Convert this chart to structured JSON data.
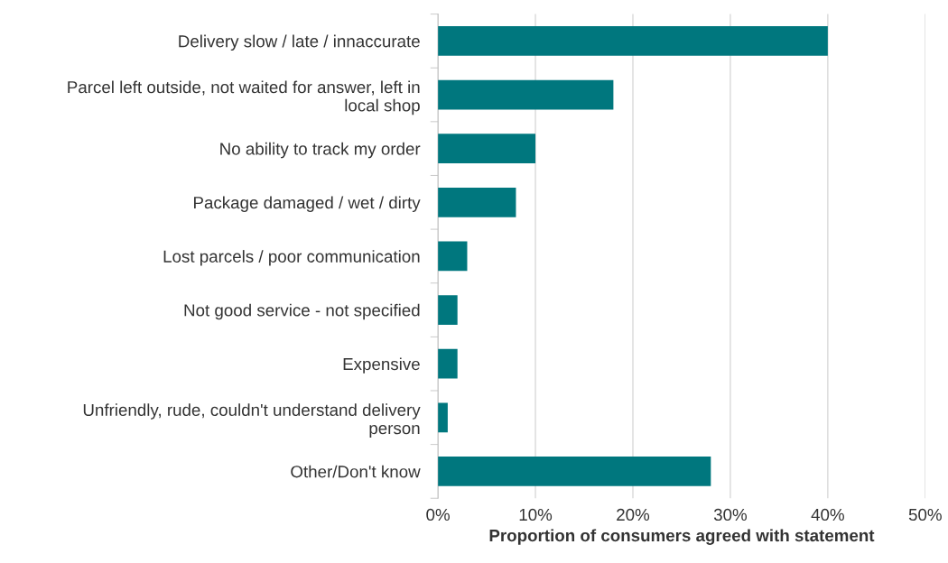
{
  "chart_data": {
    "type": "bar",
    "orientation": "horizontal",
    "categories": [
      "Delivery slow / late / innaccurate",
      "Parcel left outside, not waited for answer, left in\nlocal shop",
      "No ability to track my order",
      "Package damaged / wet / dirty",
      "Lost parcels / poor communication",
      "Not good service - not specified",
      "Expensive",
      "Unfriendly, rude, couldn't understand delivery\nperson",
      "Other/Don't know"
    ],
    "values": [
      40,
      18,
      10,
      8,
      3,
      2,
      2,
      1,
      28
    ],
    "color": "#00777e",
    "xlabel": "Proportion of consumers agreed with statement",
    "xlim": [
      0,
      50
    ],
    "xticks": [
      {
        "value": 0,
        "label": "0%"
      },
      {
        "value": 10,
        "label": "10%"
      },
      {
        "value": 20,
        "label": "20%"
      },
      {
        "value": 30,
        "label": "30%"
      },
      {
        "value": 40,
        "label": "40%"
      },
      {
        "value": 50,
        "label": "50%"
      }
    ],
    "grid": "x"
  }
}
